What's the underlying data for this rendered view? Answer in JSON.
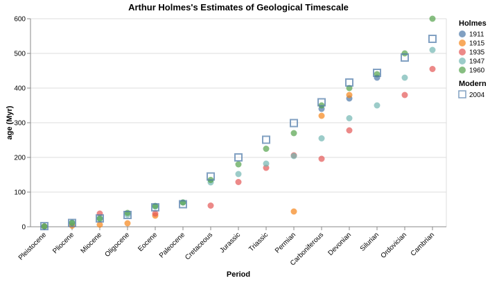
{
  "chart_data": {
    "type": "scatter",
    "title": "Arthur Holmes's Estimates of Geological Timescale",
    "xlabel": "Period",
    "ylabel": "age (Myr)",
    "ylim": [
      0,
      600
    ],
    "yticks": [
      0,
      100,
      200,
      300,
      400,
      500,
      600
    ],
    "grid": true,
    "categories": [
      "Pleistocene",
      "Pliocene",
      "Miocene",
      "Oligocene",
      "Eocene",
      "Paleocene",
      "Cretaceous",
      "Jurassic",
      "Triassic",
      "Permian",
      "Carboniferous",
      "Devonian",
      "Silurian",
      "Ordovician",
      "Cambrian"
    ],
    "legend": {
      "holmes_title": "Holmes",
      "modern_title": "Modern",
      "placement": "right"
    },
    "series": [
      {
        "name": "1911",
        "group": "Holmes",
        "color": "#4c78a8",
        "shape": "circle",
        "values": [
          null,
          null,
          null,
          null,
          null,
          null,
          null,
          null,
          null,
          null,
          340,
          370,
          430,
          null,
          null
        ]
      },
      {
        "name": "1915",
        "group": "Holmes",
        "color": "#f58518",
        "shape": "circle",
        "values": [
          1,
          3,
          6,
          10,
          32,
          null,
          null,
          null,
          null,
          44,
          320,
          380,
          null,
          null,
          null
        ]
      },
      {
        "name": "1935",
        "group": "Holmes",
        "color": "#e45756",
        "shape": "circle",
        "values": [
          null,
          null,
          38,
          null,
          38,
          null,
          61,
          129,
          170,
          206,
          196,
          278,
          null,
          380,
          455
        ]
      },
      {
        "name": "1947",
        "group": "Holmes",
        "color": "#72b7b2",
        "shape": "circle",
        "values": [
          1,
          12,
          25,
          35,
          58,
          70,
          128,
          152,
          182,
          204,
          255,
          313,
          350,
          430,
          510
        ]
      },
      {
        "name": "1960",
        "group": "Holmes",
        "color": "#54a24b",
        "shape": "circle",
        "values": [
          1,
          11,
          23,
          40,
          60,
          70,
          135,
          180,
          225,
          270,
          350,
          400,
          440,
          500,
          600
        ]
      },
      {
        "name": "2004",
        "group": "Modern",
        "color": "#4c78a8",
        "shape": "square",
        "values": [
          1.8,
          11,
          24,
          34,
          56,
          65,
          145,
          200,
          251,
          299,
          359,
          416,
          444,
          488,
          542
        ]
      }
    ]
  }
}
